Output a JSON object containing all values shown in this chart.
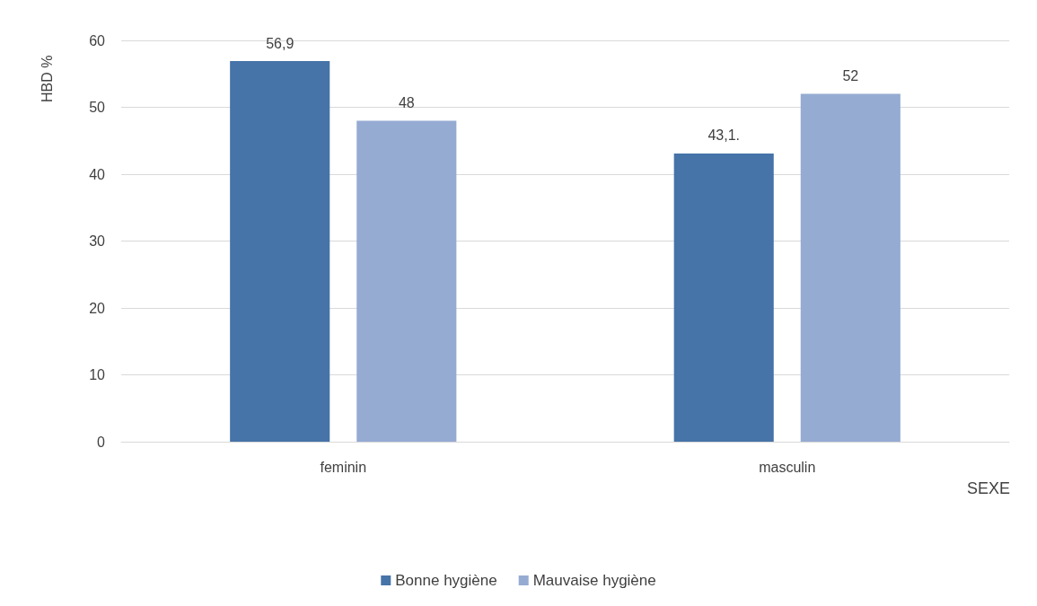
{
  "chart_data": {
    "type": "bar",
    "xlabel": "SEXE",
    "ylabel": "HBD %",
    "categories": [
      "feminin",
      "masculin"
    ],
    "series": [
      {
        "name": "Bonne hygiène",
        "color": "#4673a8",
        "values": [
          56.9,
          43.1
        ],
        "value_labels": [
          "56,9",
          "43,1."
        ]
      },
      {
        "name": "Mauvaise hygiène",
        "color": "#95abd2",
        "values": [
          48,
          52
        ],
        "value_labels": [
          "48",
          "52"
        ]
      }
    ],
    "ylim": [
      0,
      60
    ],
    "yticks": [
      0,
      10,
      20,
      30,
      40,
      50,
      60
    ],
    "grid": "y",
    "legend": "bottom"
  }
}
